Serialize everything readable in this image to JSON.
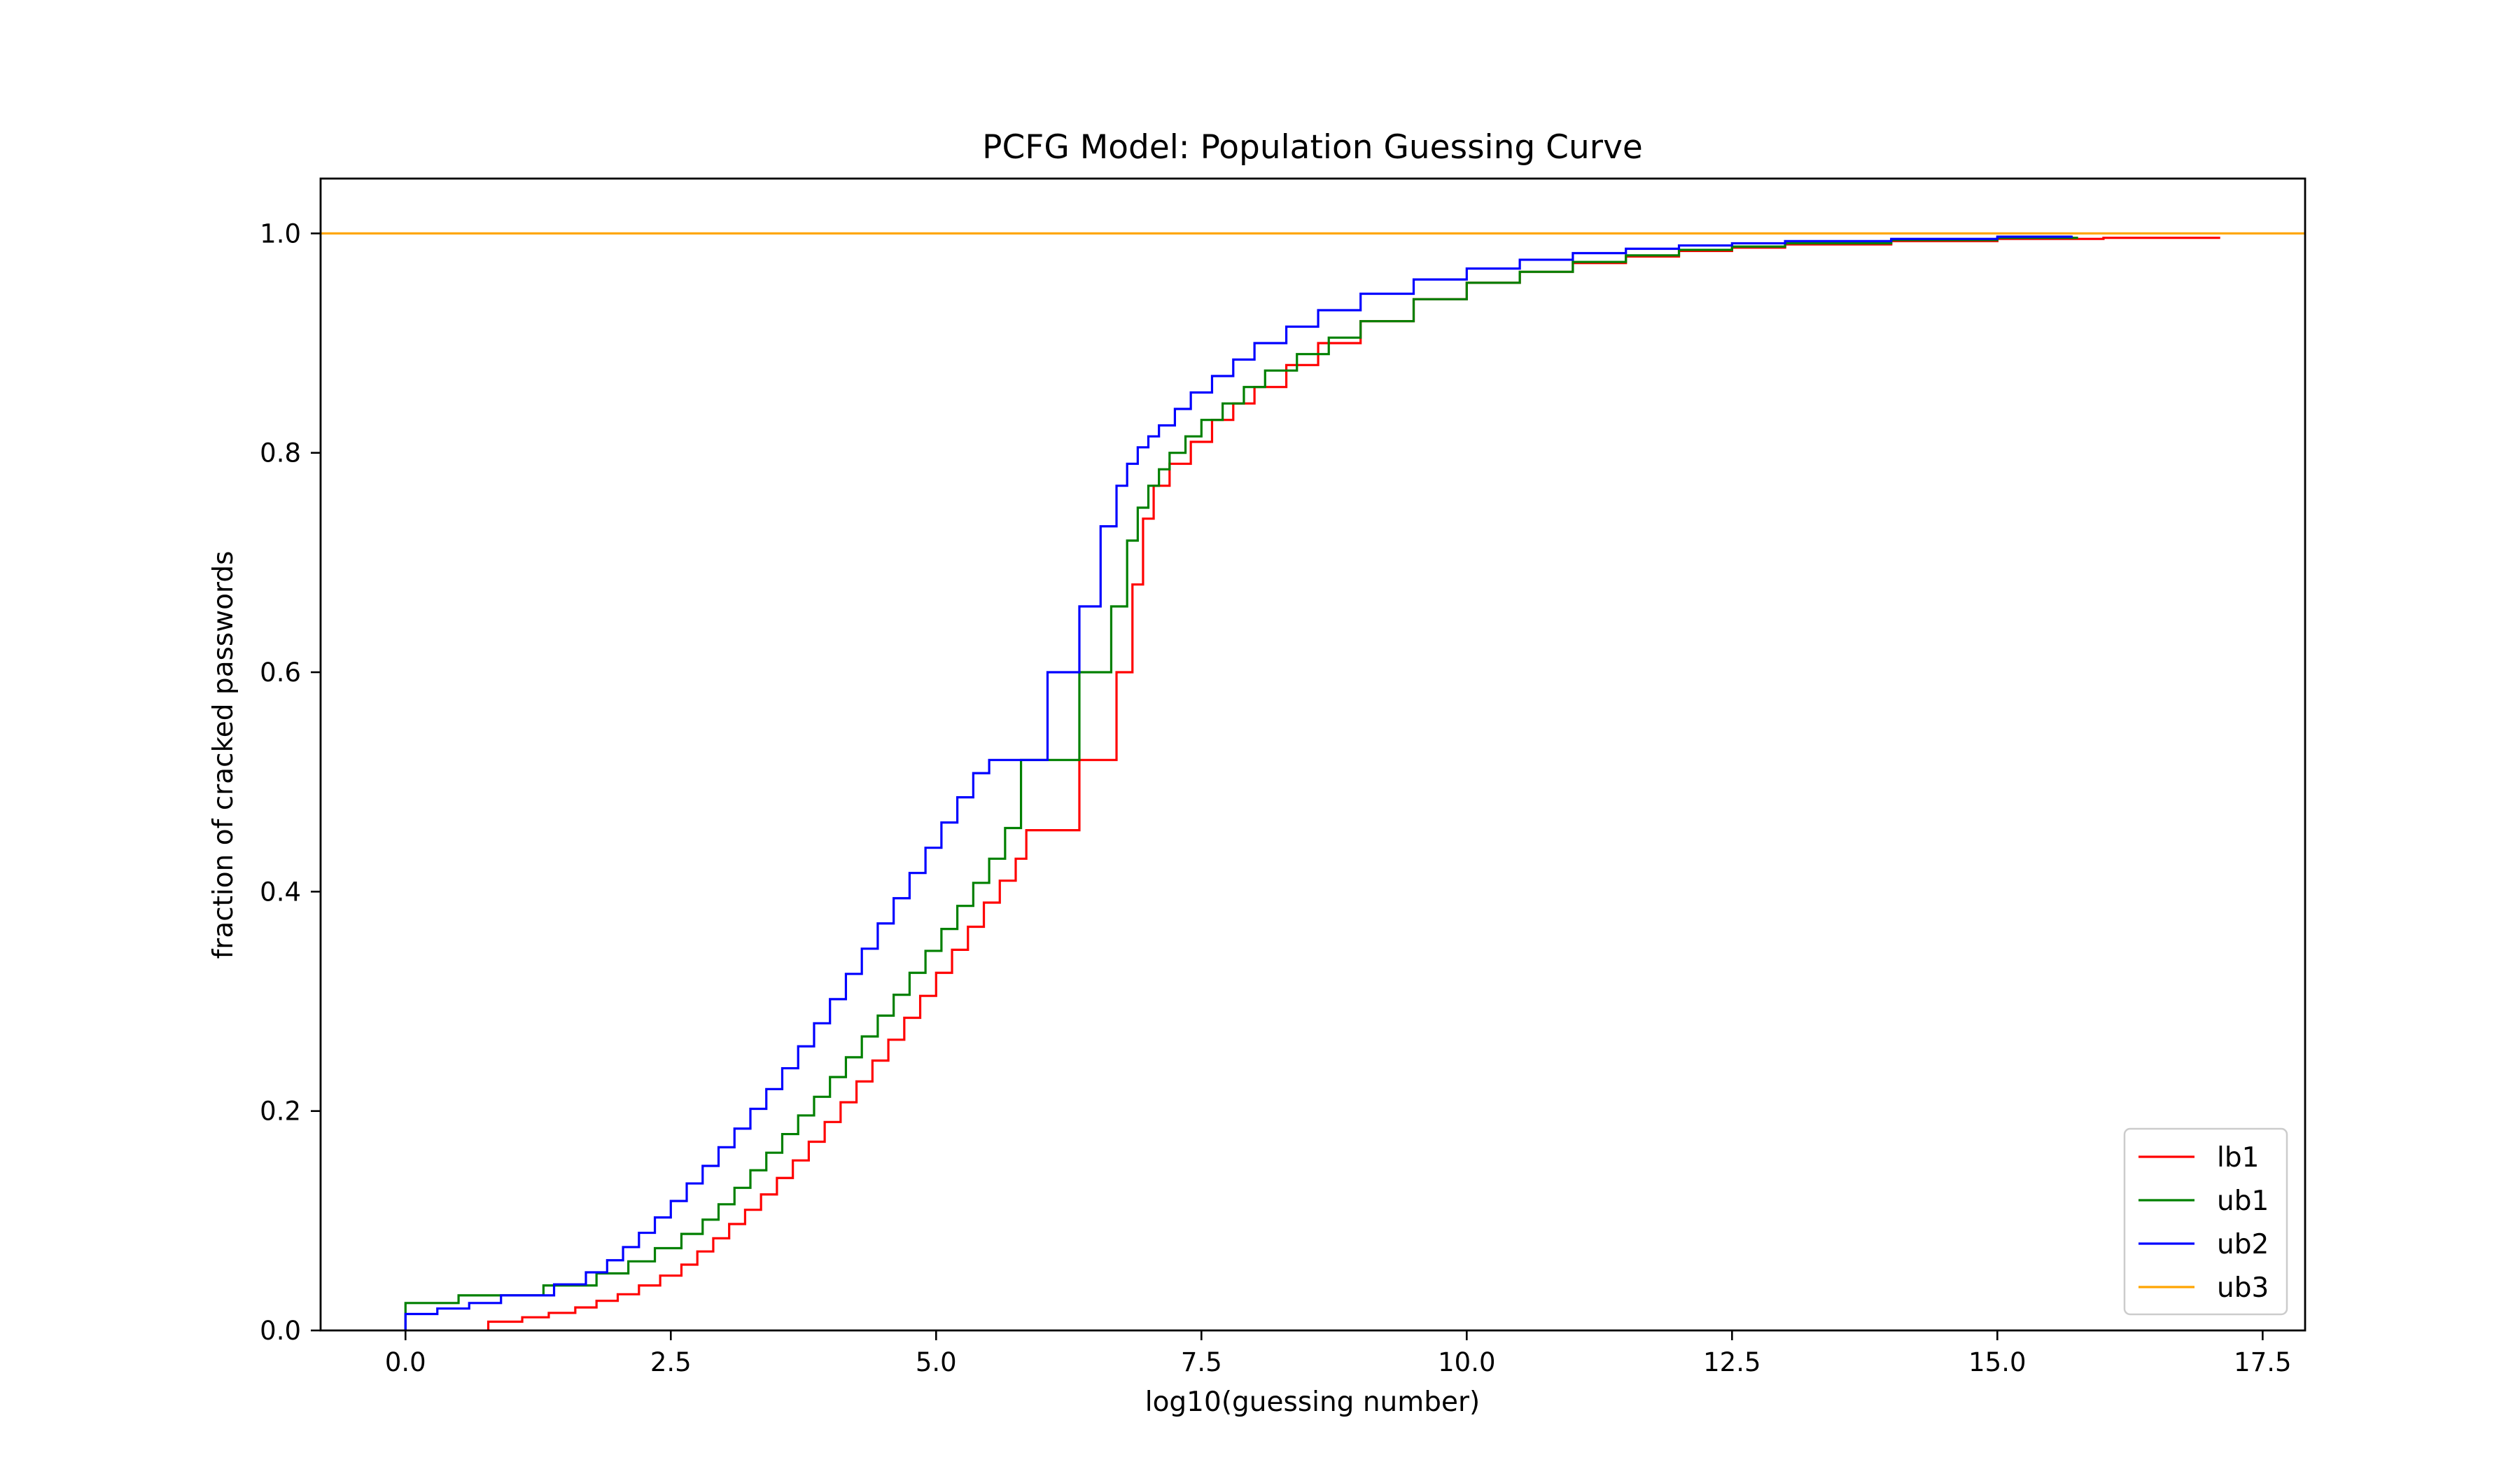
{
  "chart_data": {
    "type": "line",
    "step": true,
    "title": "PCFG Model: Population Guessing Curve",
    "xlabel": "log10(guessing number)",
    "ylabel": "fraction of cracked passwords",
    "xlim": [
      -0.8,
      17.9
    ],
    "ylim": [
      0.0,
      1.05
    ],
    "x_ticks": [
      0.0,
      2.5,
      5.0,
      7.5,
      10.0,
      12.5,
      15.0,
      17.5
    ],
    "x_tick_labels": [
      "0.0",
      "2.5",
      "5.0",
      "7.5",
      "10.0",
      "12.5",
      "15.0",
      "17.5"
    ],
    "y_ticks": [
      0.0,
      0.2,
      0.4,
      0.6,
      0.8,
      1.0
    ],
    "y_tick_labels": [
      "0.0",
      "0.2",
      "0.4",
      "0.6",
      "0.8",
      "1.0"
    ],
    "grid": false,
    "legend_position": "lower-right",
    "series": [
      {
        "name": "lb1",
        "color": "#ff0000",
        "x": [
          0.78,
          1.1,
          1.35,
          1.6,
          1.8,
          2.0,
          2.2,
          2.4,
          2.6,
          2.75,
          2.9,
          3.05,
          3.2,
          3.35,
          3.5,
          3.65,
          3.8,
          3.95,
          4.1,
          4.25,
          4.4,
          4.55,
          4.7,
          4.85,
          5.0,
          5.15,
          5.3,
          5.45,
          5.6,
          5.75,
          5.85,
          6.35,
          6.7,
          6.85,
          6.95,
          7.05,
          7.2,
          7.4,
          7.6,
          7.8,
          8.0,
          8.3,
          8.6,
          9.0,
          9.5,
          10.0,
          10.5,
          11.0,
          11.5,
          12.0,
          12.5,
          13.0,
          14.0,
          15.0,
          16.0,
          17.1
        ],
        "y": [
          0.008,
          0.012,
          0.016,
          0.021,
          0.027,
          0.033,
          0.041,
          0.05,
          0.06,
          0.072,
          0.084,
          0.097,
          0.11,
          0.124,
          0.139,
          0.155,
          0.172,
          0.19,
          0.208,
          0.227,
          0.246,
          0.265,
          0.285,
          0.305,
          0.326,
          0.347,
          0.368,
          0.39,
          0.41,
          0.43,
          0.456,
          0.52,
          0.6,
          0.68,
          0.74,
          0.77,
          0.79,
          0.81,
          0.83,
          0.845,
          0.86,
          0.88,
          0.9,
          0.92,
          0.94,
          0.955,
          0.965,
          0.973,
          0.979,
          0.984,
          0.987,
          0.99,
          0.993,
          0.995,
          0.996,
          0.996
        ]
      },
      {
        "name": "ub1",
        "color": "#008000",
        "x": [
          0.0,
          0.5,
          1.3,
          1.8,
          2.1,
          2.35,
          2.6,
          2.8,
          2.95,
          3.1,
          3.25,
          3.4,
          3.55,
          3.7,
          3.85,
          4.0,
          4.15,
          4.3,
          4.45,
          4.6,
          4.75,
          4.9,
          5.05,
          5.2,
          5.35,
          5.5,
          5.65,
          5.8,
          6.35,
          6.65,
          6.8,
          6.9,
          7.0,
          7.1,
          7.2,
          7.35,
          7.5,
          7.7,
          7.9,
          8.1,
          8.4,
          8.7,
          9.0,
          9.5,
          10.0,
          10.5,
          11.0,
          11.5,
          12.0,
          12.5,
          13.0,
          14.0,
          15.0,
          15.75
        ],
        "y": [
          0.025,
          0.032,
          0.041,
          0.052,
          0.063,
          0.075,
          0.088,
          0.101,
          0.115,
          0.13,
          0.146,
          0.162,
          0.179,
          0.196,
          0.213,
          0.231,
          0.249,
          0.268,
          0.287,
          0.306,
          0.326,
          0.346,
          0.366,
          0.387,
          0.408,
          0.43,
          0.458,
          0.52,
          0.6,
          0.66,
          0.72,
          0.75,
          0.77,
          0.785,
          0.8,
          0.815,
          0.83,
          0.845,
          0.86,
          0.875,
          0.89,
          0.905,
          0.92,
          0.94,
          0.955,
          0.965,
          0.974,
          0.98,
          0.985,
          0.988,
          0.991,
          0.994,
          0.996,
          0.997
        ]
      },
      {
        "name": "ub2",
        "color": "#0000ff",
        "x": [
          0.0,
          0.3,
          0.6,
          0.9,
          1.4,
          1.7,
          1.9,
          2.05,
          2.2,
          2.35,
          2.5,
          2.65,
          2.8,
          2.95,
          3.1,
          3.25,
          3.4,
          3.55,
          3.7,
          3.85,
          4.0,
          4.15,
          4.3,
          4.45,
          4.6,
          4.75,
          4.9,
          5.05,
          5.2,
          5.35,
          5.5,
          6.05,
          6.35,
          6.55,
          6.7,
          6.8,
          6.9,
          7.0,
          7.1,
          7.25,
          7.4,
          7.6,
          7.8,
          8.0,
          8.3,
          8.6,
          9.0,
          9.5,
          10.0,
          10.5,
          11.0,
          11.5,
          12.0,
          12.5,
          13.0,
          14.0,
          15.0,
          15.7
        ],
        "y": [
          0.015,
          0.02,
          0.025,
          0.032,
          0.042,
          0.053,
          0.064,
          0.076,
          0.089,
          0.103,
          0.118,
          0.134,
          0.15,
          0.167,
          0.184,
          0.202,
          0.22,
          0.239,
          0.259,
          0.28,
          0.302,
          0.325,
          0.348,
          0.371,
          0.394,
          0.417,
          0.44,
          0.463,
          0.486,
          0.508,
          0.52,
          0.6,
          0.66,
          0.733,
          0.77,
          0.79,
          0.805,
          0.815,
          0.825,
          0.84,
          0.855,
          0.87,
          0.885,
          0.9,
          0.915,
          0.93,
          0.945,
          0.958,
          0.968,
          0.976,
          0.982,
          0.986,
          0.989,
          0.991,
          0.993,
          0.995,
          0.997,
          0.998
        ]
      },
      {
        "name": "ub3",
        "color": "#ffa500",
        "x": [
          -0.8,
          17.9
        ],
        "y": [
          1.0,
          1.0
        ]
      }
    ]
  }
}
